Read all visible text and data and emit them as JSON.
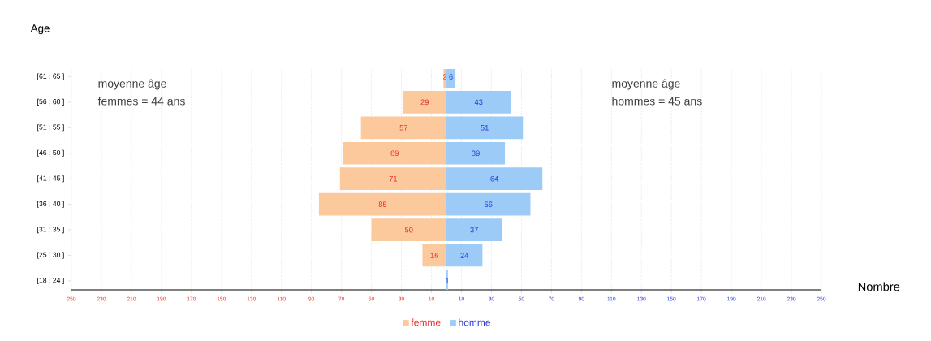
{
  "chart_data": [
    {
      "type": "bar",
      "orientation": "horizontal",
      "ylabel": "Age",
      "categories": [
        "[61 ; 65 ]",
        "[56 ; 60 ]",
        "[51 ; 55 ]",
        "[46 ; 50 ]",
        "[41 ; 45 ]",
        "[36 ; 40 ]",
        "[31 ; 35 ]",
        "[25 ; 30 ]",
        "[18 ; 24 ]"
      ],
      "series": [
        {
          "name": "femme",
          "color": "#fbc99b",
          "values": [
            2,
            29,
            57,
            69,
            71,
            85,
            50,
            16,
            null
          ]
        }
      ],
      "xlim": [
        250,
        0
      ],
      "xticks": [
        250,
        230,
        210,
        190,
        170,
        150,
        130,
        110,
        90,
        70,
        50,
        30,
        10
      ],
      "grid": "x",
      "legend": "bottom",
      "data_labels": true,
      "annotations": [
        "moyenne âge",
        "femmes = 44 ans"
      ]
    },
    {
      "type": "bar",
      "orientation": "horizontal",
      "xlabel": "Nombre",
      "tick_labels": "x",
      "categories": [
        null,
        null,
        null,
        null,
        null,
        null,
        null,
        null,
        null
      ],
      "series": [
        {
          "name": "homme",
          "color": "#9ccbf8",
          "values": [
            6,
            43,
            51,
            39,
            64,
            56,
            37,
            24,
            1
          ]
        }
      ],
      "xlim": [
        0,
        250
      ],
      "xticks": [
        10,
        30,
        50,
        70,
        90,
        110,
        130,
        150,
        170,
        190,
        210,
        230,
        250
      ],
      "grid": "x",
      "legend": "bottom",
      "data_labels": true,
      "annotations": [
        "moyenne âge",
        "hommes = 45 ans"
      ]
    }
  ]
}
